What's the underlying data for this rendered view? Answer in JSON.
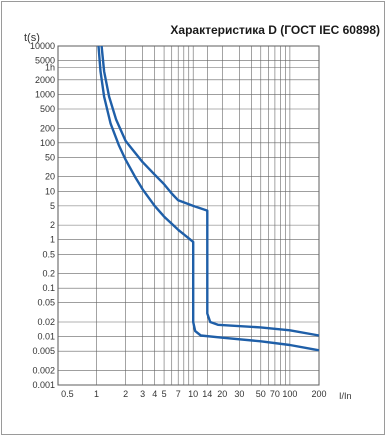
{
  "chart_data": {
    "type": "line",
    "title": "Характеристика D (ГОСТ IEC 60898)",
    "ylabel": "t(s)",
    "xlabel": "I/In",
    "x_scale": "log",
    "y_scale": "log",
    "xlim": [
      0.4,
      200
    ],
    "ylim": [
      0.001,
      10000
    ],
    "grid": true,
    "x_ticks": [
      {
        "v": 0.5,
        "label": "0.5"
      },
      {
        "v": 1,
        "label": "1"
      },
      {
        "v": 2,
        "label": "2"
      },
      {
        "v": 3,
        "label": "3"
      },
      {
        "v": 4,
        "label": "4"
      },
      {
        "v": 5,
        "label": "5"
      },
      {
        "v": 7,
        "label": "7"
      },
      {
        "v": 10,
        "label": "10"
      },
      {
        "v": 14,
        "label": "14"
      },
      {
        "v": 20,
        "label": "20"
      },
      {
        "v": 30,
        "label": "30"
      },
      {
        "v": 50,
        "label": "50"
      },
      {
        "v": 70,
        "label": "70"
      },
      {
        "v": 100,
        "label": "100"
      },
      {
        "v": 200,
        "label": "200"
      }
    ],
    "y_ticks": [
      {
        "v": 10000,
        "label": "10000"
      },
      {
        "v": 5000,
        "label": "5000"
      },
      {
        "v": 3600,
        "label": "1h"
      },
      {
        "v": 2000,
        "label": "2000"
      },
      {
        "v": 1000,
        "label": "1000"
      },
      {
        "v": 500,
        "label": "500"
      },
      {
        "v": 200,
        "label": "200"
      },
      {
        "v": 100,
        "label": "100"
      },
      {
        "v": 50,
        "label": "50"
      },
      {
        "v": 20,
        "label": "20"
      },
      {
        "v": 10,
        "label": "10"
      },
      {
        "v": 5,
        "label": "5"
      },
      {
        "v": 2,
        "label": "2"
      },
      {
        "v": 1,
        "label": "1"
      },
      {
        "v": 0.5,
        "label": "0.5"
      },
      {
        "v": 0.2,
        "label": "0.2"
      },
      {
        "v": 0.1,
        "label": "0.1"
      },
      {
        "v": 0.05,
        "label": "0.05"
      },
      {
        "v": 0.02,
        "label": "0.02"
      },
      {
        "v": 0.01,
        "label": "0.01"
      },
      {
        "v": 0.005,
        "label": "0.005"
      },
      {
        "v": 0.002,
        "label": "0.002"
      },
      {
        "v": 0.001,
        "label": "0.001"
      }
    ],
    "x_grid": [
      1,
      2,
      3,
      4,
      5,
      6,
      7,
      8,
      9,
      10,
      14,
      20,
      30,
      40,
      50,
      60,
      70,
      80,
      90,
      100,
      200
    ],
    "y_grid": [
      10000,
      5000,
      3600,
      2000,
      1000,
      500,
      200,
      100,
      50,
      20,
      10,
      5,
      2,
      1,
      0.5,
      0.2,
      0.1,
      0.05,
      0.02,
      0.01,
      0.005,
      0.002,
      0.001
    ],
    "series": [
      {
        "color": "#1f5fa8",
        "points": [
          [
            1.05,
            10000
          ],
          [
            1.1,
            3000
          ],
          [
            1.2,
            900
          ],
          [
            1.4,
            250
          ],
          [
            1.7,
            90
          ],
          [
            2,
            45
          ],
          [
            2.5,
            20
          ],
          [
            3,
            11
          ],
          [
            4,
            5
          ],
          [
            5,
            3
          ],
          [
            7,
            1.6
          ],
          [
            10,
            0.9
          ],
          [
            10,
            0.02
          ],
          [
            10.5,
            0.013
          ],
          [
            12,
            0.0105
          ],
          [
            20,
            0.0095
          ],
          [
            50,
            0.008
          ],
          [
            100,
            0.0067
          ],
          [
            200,
            0.0052
          ]
        ]
      },
      {
        "color": "#1f5fa8",
        "points": [
          [
            1.13,
            10000
          ],
          [
            1.2,
            3000
          ],
          [
            1.35,
            900
          ],
          [
            1.6,
            300
          ],
          [
            2,
            110
          ],
          [
            3,
            40
          ],
          [
            4,
            22
          ],
          [
            5,
            14
          ],
          [
            6,
            9
          ],
          [
            7,
            6.5
          ],
          [
            10,
            5
          ],
          [
            14,
            4
          ],
          [
            14,
            0.03
          ],
          [
            15,
            0.02
          ],
          [
            18,
            0.0175
          ],
          [
            50,
            0.0155
          ],
          [
            100,
            0.0135
          ],
          [
            200,
            0.0105
          ]
        ]
      }
    ]
  }
}
